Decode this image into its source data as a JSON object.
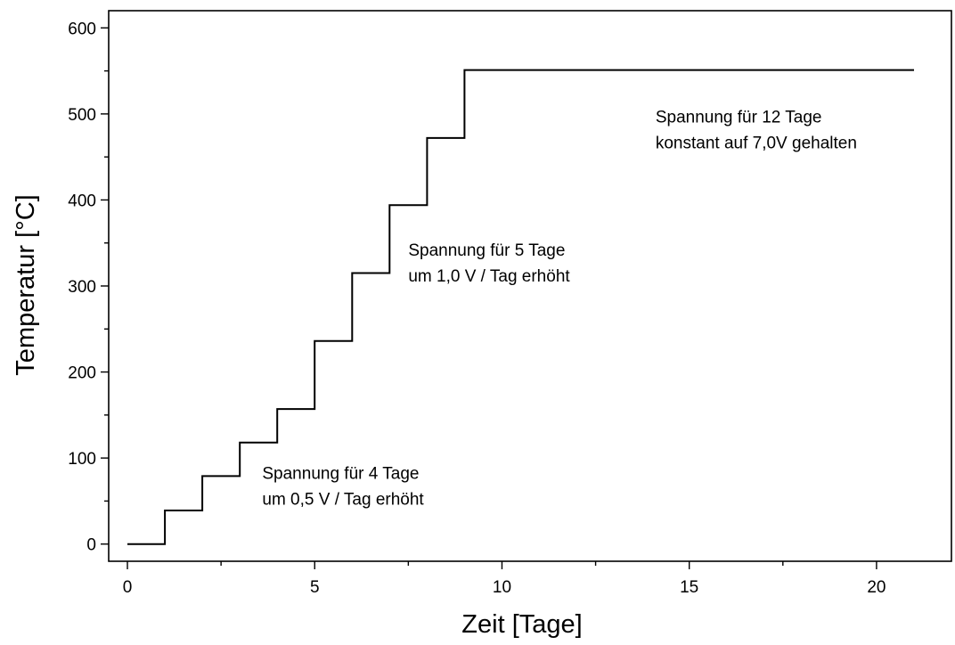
{
  "chart_data": {
    "type": "line",
    "title": "",
    "xlabel": "Zeit [Tage]",
    "ylabel": "Temperatur [°C]",
    "xlim": [
      -0.5,
      22
    ],
    "ylim": [
      -20,
      620
    ],
    "x_major_ticks": [
      0,
      5,
      10,
      15,
      20
    ],
    "x_minor_ticks": [
      2.5,
      7.5,
      12.5,
      17.5
    ],
    "y_major_ticks": [
      0,
      100,
      200,
      300,
      400,
      500,
      600
    ],
    "y_minor_ticks": [
      50,
      150,
      250,
      350,
      450,
      550
    ],
    "x_tick_labels": [
      "0",
      "5",
      "10",
      "15",
      "20"
    ],
    "y_tick_labels": [
      "0",
      "100",
      "200",
      "300",
      "400",
      "500",
      "600"
    ],
    "grid": false,
    "line_style": "step",
    "series": [
      {
        "x": [
          0,
          1,
          1,
          2,
          2,
          3,
          3,
          4,
          4,
          5,
          5,
          6,
          6,
          7,
          7,
          8,
          8,
          9,
          9,
          21
        ],
        "y": [
          0,
          0,
          39,
          39,
          79,
          79,
          118,
          118,
          157,
          157,
          236,
          236,
          315,
          315,
          394,
          394,
          472,
          472,
          551,
          551
        ],
        "color": "#000000"
      }
    ],
    "annotations": [
      {
        "lines": [
          "Spannung für 4 Tage",
          "um 0,5 V / Tag erhöht"
        ],
        "x": 3.6,
        "y": 76
      },
      {
        "lines": [
          "Spannung für 5 Tage",
          "um 1,0 V / Tag erhöht"
        ],
        "x": 7.5,
        "y": 335
      },
      {
        "lines": [
          "Spannung für 12 Tage",
          "konstant auf 7,0V gehalten"
        ],
        "x": 14.1,
        "y": 490
      }
    ]
  }
}
